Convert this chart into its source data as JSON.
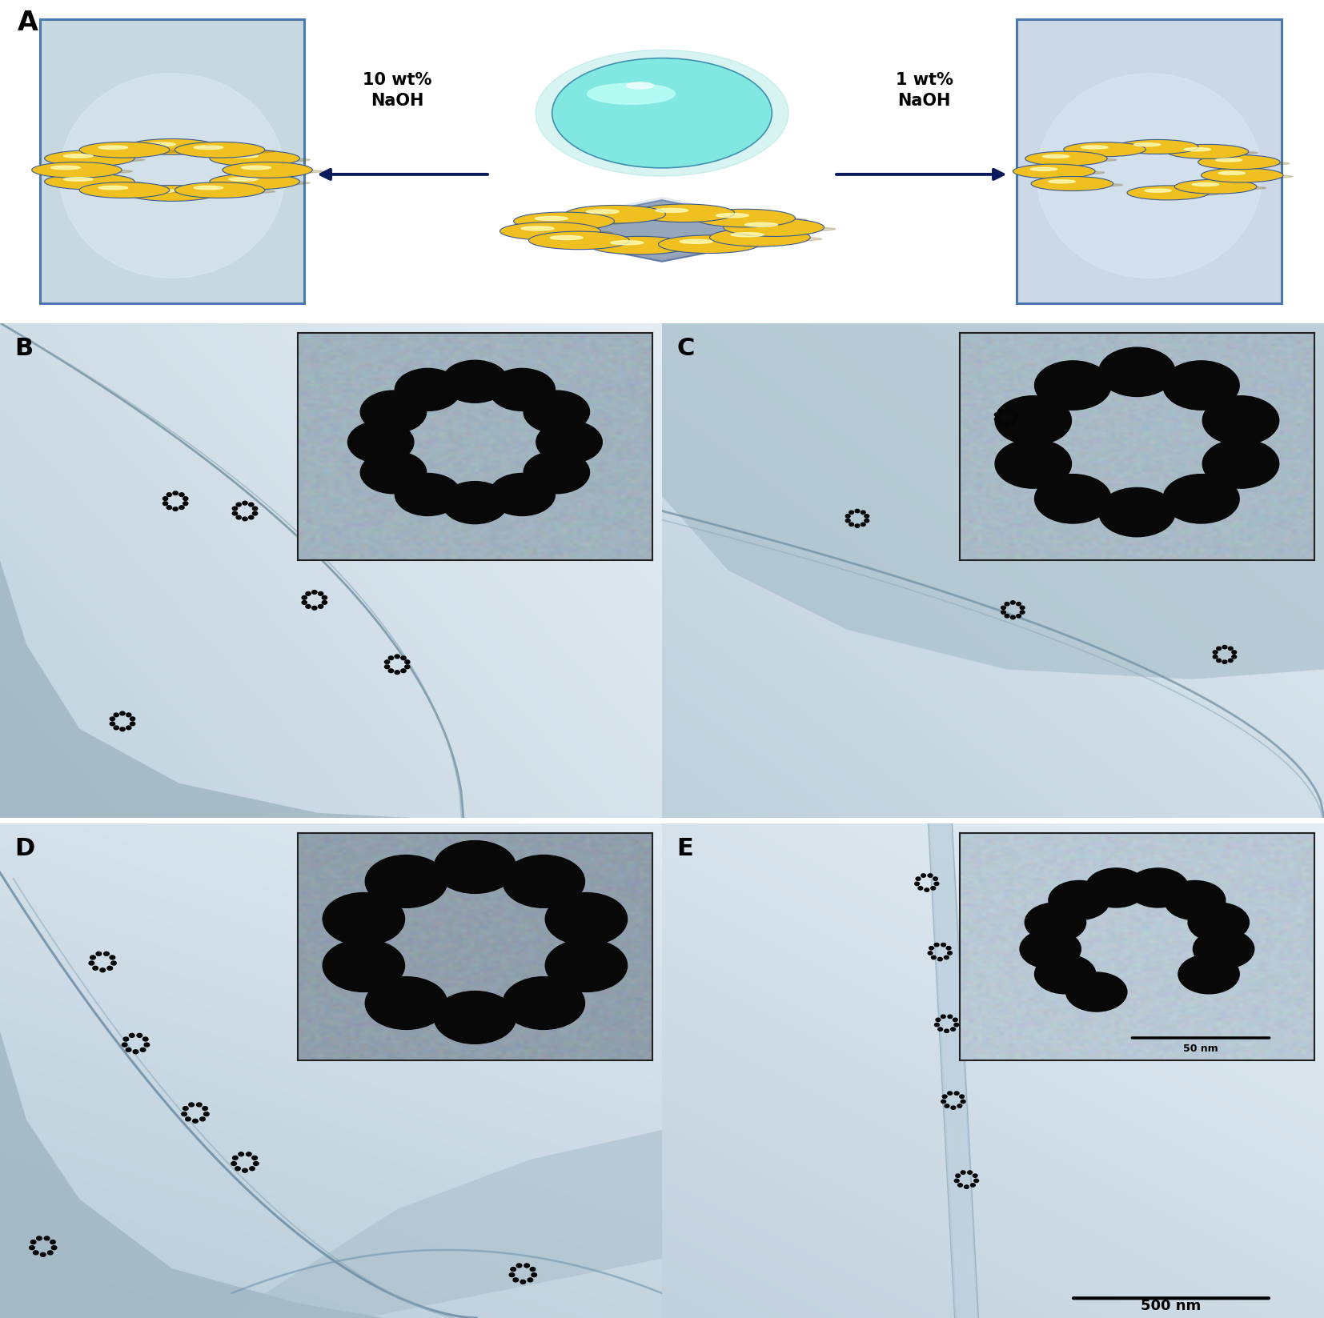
{
  "figure_width": 16.54,
  "figure_height": 16.47,
  "bg": "#ffffff",
  "gold": "#f0c020",
  "gold_dark": "#c09010",
  "gold_edge": "#3a5a90",
  "gold_hl": "#ffffc0",
  "teal": "#80e8e0",
  "teal_dark": "#40c8c0",
  "teal_edge": "#4090b0",
  "teal_hl": "#c0fff8",
  "platform_fill": "#8090a8",
  "platform_edge": "#5070a0",
  "box_fill_L": "#c8d8e0",
  "box_fill_R": "#ccd8e8",
  "box_edge": "#4a78b0",
  "arrow_col": "#0a1a5c",
  "text_left": "10 wt%\nNaOH",
  "text_right": "1 wt%\nNaOH",
  "label_A": "A",
  "label_B": "B",
  "label_C": "C",
  "label_D": "D",
  "label_E": "E",
  "scale_500": "500 nm",
  "scale_50": "50 nm",
  "tem_blue_gray": "#b8ccd8",
  "tem_light_gray": "#c8d8e0",
  "tem_lighter": "#d8e8f0",
  "tem_white": "#e8f0f5",
  "np_black": "#080808",
  "inset_bg_B": "#a0b2be",
  "inset_bg_C": "#a8bac6",
  "inset_bg_D": "#909fac",
  "inset_bg_E": "#b8c8d4"
}
